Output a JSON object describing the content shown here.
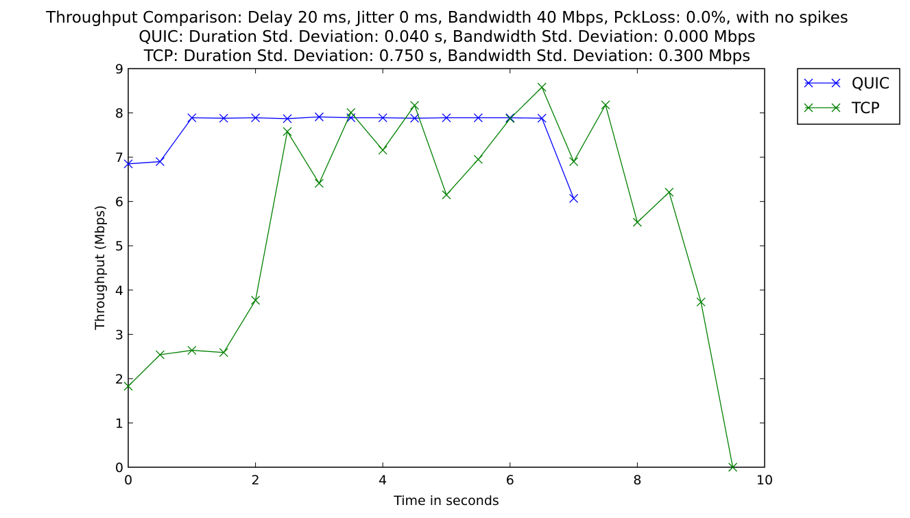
{
  "chart_data": {
    "type": "line",
    "title_lines": [
      "Throughput Comparison: Delay 20 ms, Jitter 0 ms, Bandwidth 40 Mbps, PckLoss: 0.0%, with no spikes",
      "QUIC: Duration Std. Deviation: 0.040 s, Bandwidth Std. Deviation: 0.000 Mbps",
      "TCP: Duration Std. Deviation: 0.750 s, Bandwidth Std. Deviation: 0.300 Mbps"
    ],
    "xlabel": "Time in seconds",
    "ylabel": "Throughput (Mbps)",
    "xlim": [
      0,
      10
    ],
    "ylim": [
      0,
      9
    ],
    "xticks": [
      "0",
      "2",
      "4",
      "6",
      "8",
      "10"
    ],
    "yticks": [
      "0",
      "1",
      "2",
      "3",
      "4",
      "5",
      "6",
      "7",
      "8",
      "9"
    ],
    "grid": false,
    "legend_position": "outside-top-right",
    "marker": "x",
    "series": [
      {
        "name": "QUIC",
        "color": "#0000ff",
        "x": [
          0,
          0.5,
          1,
          1.5,
          2,
          2.5,
          3,
          3.5,
          4,
          4.5,
          5,
          5.5,
          6,
          6.5,
          7
        ],
        "values": [
          6.85,
          6.9,
          7.89,
          7.88,
          7.89,
          7.87,
          7.91,
          7.89,
          7.89,
          7.88,
          7.89,
          7.89,
          7.89,
          7.88,
          6.07
        ]
      },
      {
        "name": "TCP",
        "color": "#008000",
        "x": [
          0,
          0.5,
          1,
          1.5,
          2,
          2.5,
          3,
          3.5,
          4,
          4.5,
          5,
          5.5,
          6,
          6.5,
          7,
          7.5,
          8,
          8.5,
          9,
          9.5
        ],
        "values": [
          1.83,
          2.54,
          2.64,
          2.59,
          3.77,
          7.58,
          6.41,
          8.01,
          7.16,
          8.17,
          6.15,
          6.95,
          7.87,
          8.58,
          6.9,
          8.18,
          5.53,
          6.21,
          3.73,
          0.0
        ]
      }
    ]
  }
}
